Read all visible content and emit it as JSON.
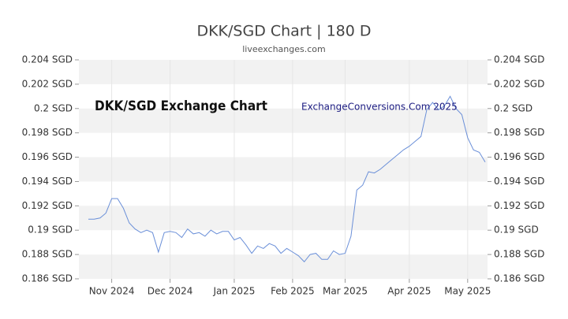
{
  "chart_data": {
    "type": "line",
    "title": "DKK/SGD Chart | 180 D",
    "subtitle": "liveexchanges.com",
    "annotations": [
      "DKK/SGD Exchange Chart",
      "ExchangeConversions.Com 2025"
    ],
    "categories": [
      null,
      null,
      null,
      null,
      "Nov 2024",
      null,
      null,
      null,
      null,
      null,
      null,
      null,
      null,
      null,
      "Dec 2024",
      null,
      null,
      null,
      null,
      null,
      null,
      null,
      null,
      null,
      null,
      "Jan 2025",
      null,
      null,
      null,
      null,
      null,
      null,
      null,
      null,
      null,
      "Feb 2025",
      null,
      null,
      null,
      null,
      null,
      null,
      null,
      null,
      "Mar 2025",
      null,
      null,
      null,
      null,
      null,
      null,
      null,
      null,
      null,
      null,
      "Apr 2025",
      null,
      null,
      null,
      null,
      null,
      null,
      null,
      null,
      null,
      "May 2025",
      null,
      null,
      null
    ],
    "series": [
      {
        "name": "DKK/SGD",
        "color": "#6a8fd8",
        "values": [
          0.1909,
          0.1909,
          0.191,
          0.1914,
          0.1926,
          0.1926,
          0.1918,
          0.1906,
          0.1901,
          0.1898,
          0.19,
          0.1898,
          0.1882,
          0.1898,
          0.1899,
          0.1898,
          0.1894,
          0.1901,
          0.1897,
          0.1898,
          0.1895,
          0.19,
          0.1897,
          0.1899,
          0.1899,
          0.1892,
          0.1894,
          0.1888,
          0.1881,
          0.1887,
          0.1885,
          0.1889,
          0.1887,
          0.1881,
          0.1885,
          0.1882,
          0.1879,
          0.1874,
          0.188,
          0.1881,
          0.1876,
          0.1876,
          0.1883,
          0.188,
          0.1881,
          0.1895,
          0.1933,
          0.1937,
          0.1948,
          0.1947,
          0.195,
          0.1954,
          0.1958,
          0.1962,
          0.1966,
          0.1969,
          0.1973,
          0.1977,
          0.1999,
          0.2005,
          0.1999,
          0.2002,
          0.201,
          0.2,
          0.1995,
          0.1976,
          0.1966,
          0.1964,
          0.1956
        ]
      }
    ],
    "ylim": [
      0.186,
      0.204
    ],
    "yticks": [
      {
        "value": 0.186,
        "label": "0.186 SGD"
      },
      {
        "value": 0.188,
        "label": "0.188 SGD"
      },
      {
        "value": 0.19,
        "label": "0.19 SGD"
      },
      {
        "value": 0.192,
        "label": "0.192 SGD"
      },
      {
        "value": 0.194,
        "label": "0.194 SGD"
      },
      {
        "value": 0.196,
        "label": "0.196 SGD"
      },
      {
        "value": 0.198,
        "label": "0.198 SGD"
      },
      {
        "value": 0.2,
        "label": "0.2 SGD"
      },
      {
        "value": 0.202,
        "label": "0.202 SGD"
      },
      {
        "value": 0.204,
        "label": "0.204 SGD"
      }
    ],
    "grid": "bands",
    "band_color": "#f2f2f2",
    "right_axis": true
  }
}
